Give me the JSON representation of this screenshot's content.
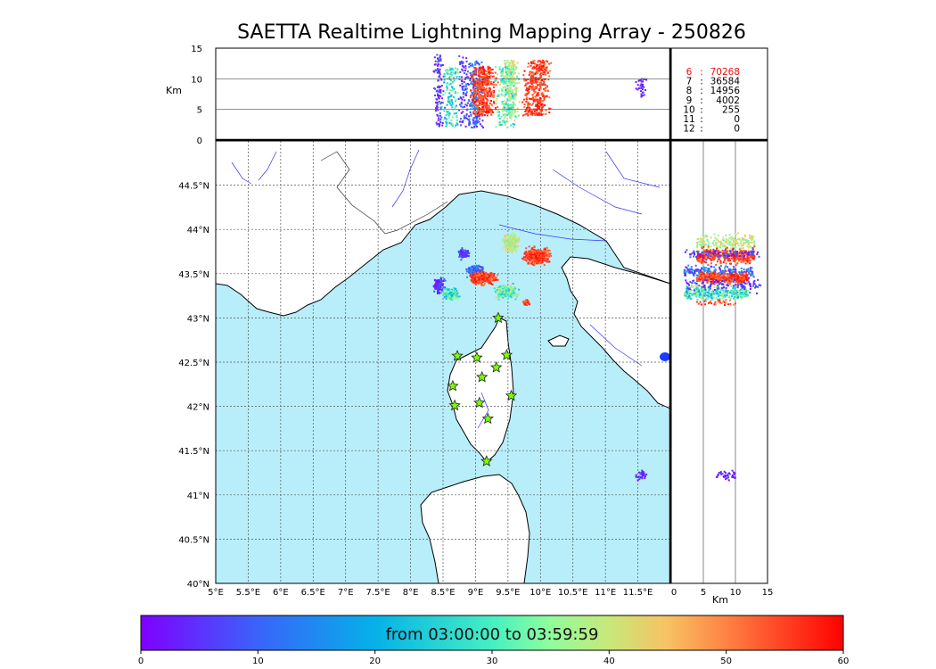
{
  "chart_data": {
    "type": "scatter",
    "title": "SAETTA Realtime Lightning Mapping Array - 250826",
    "map": {
      "lon_range": [
        5.0,
        12.0
      ],
      "lat_range": [
        40.0,
        45.0
      ],
      "x_ticks": [
        "5°E",
        "5.5°E",
        "6°E",
        "6.5°E",
        "7°E",
        "7.5°E",
        "8°E",
        "8.5°E",
        "9°E",
        "9.5°E",
        "10°E",
        "10.5°E",
        "11°E",
        "11.5°E"
      ],
      "y_ticks": [
        "40°N",
        "40.5°N",
        "41°N",
        "41.5°N",
        "42°N",
        "42.5°N",
        "43°N",
        "43.5°N",
        "44°N",
        "44.5°N"
      ],
      "grid": true
    },
    "altitude_lon_panel": {
      "ylabel": "Km",
      "y_range": [
        0,
        15
      ],
      "y_ticks": [
        "0",
        "5",
        "10",
        "15"
      ]
    },
    "altitude_lat_panel": {
      "xlabel": "Km",
      "x_range": [
        0,
        15
      ],
      "x_ticks": [
        "0",
        "5",
        "10",
        "15"
      ]
    },
    "station_counts": [
      {
        "stations": "6",
        "count": "70268",
        "highlight": true
      },
      {
        "stations": "7",
        "count": "36584"
      },
      {
        "stations": "8",
        "count": "14956"
      },
      {
        "stations": "9",
        "count": "4002"
      },
      {
        "stations": "10",
        "count": "255"
      },
      {
        "stations": "11",
        "count": "0"
      },
      {
        "stations": "12",
        "count": "0"
      }
    ],
    "stations_lonlat": [
      [
        9.35,
        43.0
      ],
      [
        8.72,
        42.57
      ],
      [
        9.02,
        42.55
      ],
      [
        9.48,
        42.58
      ],
      [
        9.32,
        42.44
      ],
      [
        9.1,
        42.33
      ],
      [
        8.65,
        42.23
      ],
      [
        9.55,
        42.12
      ],
      [
        8.68,
        42.01
      ],
      [
        9.06,
        42.04
      ],
      [
        9.19,
        41.86
      ],
      [
        9.17,
        41.38
      ]
    ],
    "clusters": [
      {
        "lon": 9.55,
        "lat": 43.85,
        "rlon": 0.1,
        "rlat": 0.09,
        "t": [
          32,
          45
        ],
        "alt": [
          4,
          13
        ],
        "n": 200
      },
      {
        "lon": 9.95,
        "lat": 43.7,
        "rlon": 0.18,
        "rlat": 0.08,
        "t": [
          50,
          60
        ],
        "alt": [
          4,
          13
        ],
        "n": 380
      },
      {
        "lon": 8.82,
        "lat": 43.72,
        "rlon": 0.07,
        "rlat": 0.06,
        "t": [
          0,
          12
        ],
        "alt": [
          2,
          14
        ],
        "n": 90
      },
      {
        "lon": 9.0,
        "lat": 43.52,
        "rlon": 0.12,
        "rlat": 0.06,
        "t": [
          2,
          20
        ],
        "alt": [
          2,
          13
        ],
        "n": 200
      },
      {
        "lon": 9.12,
        "lat": 43.45,
        "rlon": 0.18,
        "rlat": 0.06,
        "t": [
          50,
          60
        ],
        "alt": [
          4,
          12
        ],
        "n": 420
      },
      {
        "lon": 9.48,
        "lat": 43.3,
        "rlon": 0.16,
        "rlat": 0.07,
        "t": [
          22,
          42
        ],
        "alt": [
          2,
          12
        ],
        "n": 200
      },
      {
        "lon": 9.78,
        "lat": 43.18,
        "rlon": 0.05,
        "rlat": 0.04,
        "t": [
          48,
          60
        ],
        "alt": [
          4,
          10
        ],
        "n": 30
      },
      {
        "lon": 8.44,
        "lat": 43.37,
        "rlon": 0.08,
        "rlat": 0.08,
        "t": [
          0,
          12
        ],
        "alt": [
          2,
          14
        ],
        "n": 110
      },
      {
        "lon": 8.62,
        "lat": 43.27,
        "rlon": 0.11,
        "rlat": 0.06,
        "t": [
          18,
          38
        ],
        "alt": [
          2,
          12
        ],
        "n": 140
      },
      {
        "lon": 11.55,
        "lat": 41.22,
        "rlon": 0.07,
        "rlat": 0.05,
        "t": [
          0,
          8
        ],
        "alt": [
          7,
          10
        ],
        "n": 35
      }
    ]
  },
  "colorbar": {
    "label": "from 03:00:00 to 03:59:59",
    "range": [
      0,
      60
    ],
    "ticks": [
      "0",
      "10",
      "20",
      "30",
      "40",
      "50",
      "60"
    ]
  }
}
